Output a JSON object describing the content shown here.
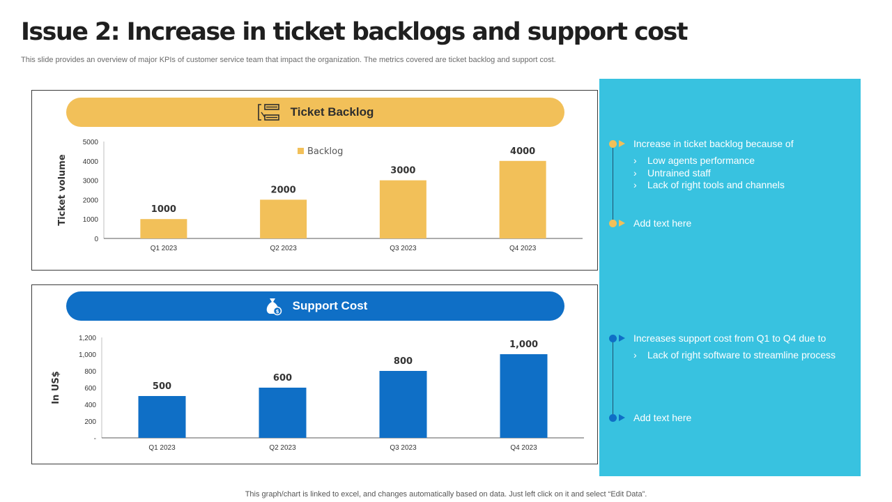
{
  "header": {
    "title": "Issue 2: Increase in ticket backlogs and support cost",
    "subtitle": "This slide provides an overview of major KPIs of customer service team that impact the organization. The metrics covered are ticket backlog and support cost."
  },
  "panels": {
    "top": {
      "heading": "Ticket Backlog",
      "icon": "ticket-list-icon"
    },
    "bottom": {
      "heading": "Support Cost",
      "icon": "money-bag-icon"
    }
  },
  "chart_data": [
    {
      "type": "bar",
      "categories": [
        "Q1 2023",
        "Q2 2023",
        "Q3 2023",
        "Q4 2023"
      ],
      "series": [
        {
          "name": "Backlog",
          "values": [
            1000,
            2000,
            3000,
            4000
          ],
          "color": "#f2c059"
        }
      ],
      "data_labels": [
        "1000",
        "2000",
        "3000",
        "4000"
      ],
      "title": "Ticket Backlog",
      "xlabel": "",
      "ylabel": "Ticket volume",
      "ylim": [
        0,
        5000
      ],
      "yticks": [
        0,
        1000,
        2000,
        3000,
        4000,
        5000
      ],
      "ytick_labels": [
        "0",
        "1000",
        "2000",
        "3000",
        "4000",
        "5000"
      ],
      "legend": "top-left",
      "grid": false
    },
    {
      "type": "bar",
      "categories": [
        "Q1 2023",
        "Q2 2023",
        "Q3 2023",
        "Q4 2023"
      ],
      "series": [
        {
          "values": [
            500,
            600,
            800,
            1000
          ],
          "color": "#0f6fc6"
        }
      ],
      "data_labels": [
        "500",
        "600",
        "800",
        "1,000"
      ],
      "title": "Support Cost",
      "xlabel": "",
      "ylabel": "In US$",
      "ylim": [
        0,
        1200
      ],
      "yticks": [
        0,
        200,
        400,
        600,
        800,
        1000,
        1200
      ],
      "ytick_labels": [
        "-",
        "200",
        "400",
        "600",
        "800",
        "1,000",
        "1,200"
      ],
      "legend": "none",
      "grid": false
    }
  ],
  "side": {
    "backlog": {
      "heading": "Increase in ticket backlog because of",
      "bullets": [
        "Low agents performance",
        "Untrained staff",
        "Lack of right tools and channels"
      ],
      "add_text": "Add text here",
      "accent": "#f2c059"
    },
    "cost": {
      "heading": "Increases support cost from Q1 to Q4 due to",
      "bullets": [
        "Lack of right software to streamline process"
      ],
      "add_text": "Add text here",
      "accent": "#0f6fc6"
    },
    "chevron": "›"
  },
  "footer": {
    "note": "This graph/chart is linked to excel,  and changes automatically based on data. Just left click on it and select “Edit Data”."
  }
}
